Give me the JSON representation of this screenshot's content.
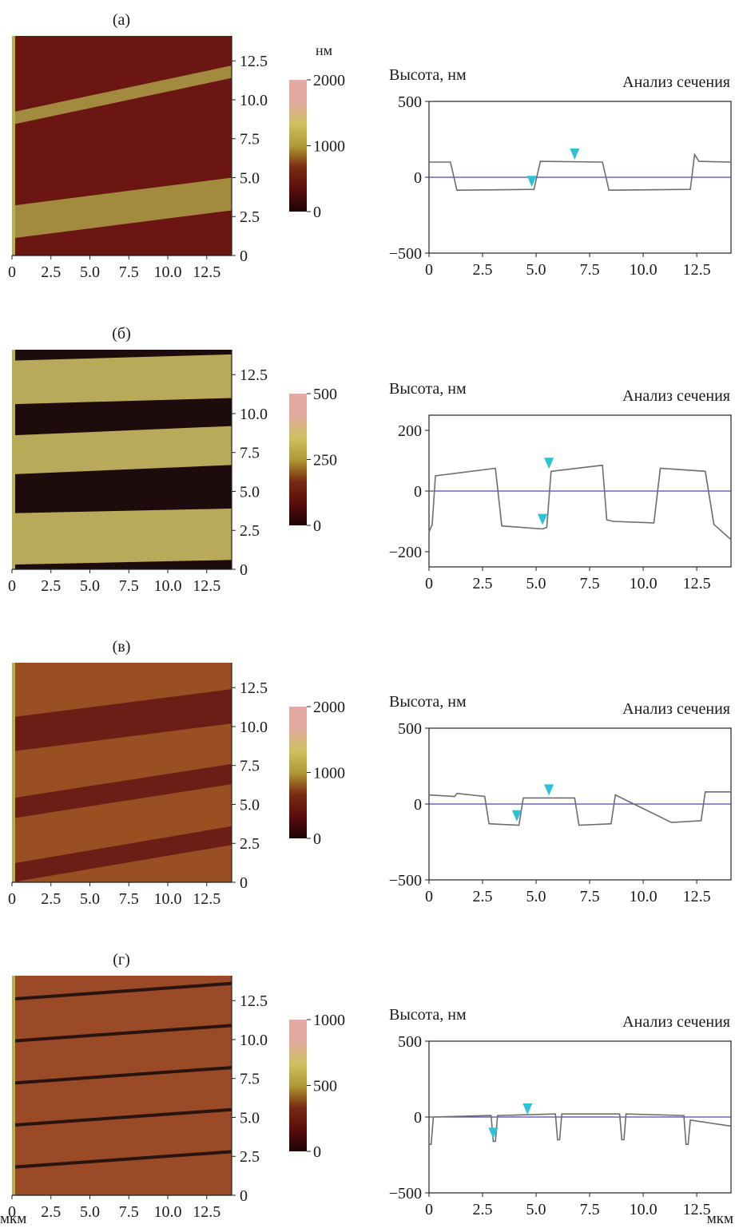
{
  "chart_data": [
    {
      "label": "(а)",
      "type": "heatmap",
      "map": {
        "xticks": [
          "0",
          "2.5",
          "5.0",
          "7.5",
          "10.0",
          "12.5"
        ],
        "yticks": [
          "0",
          "2.5",
          "5.0",
          "7.5",
          "10.0",
          "12.5"
        ],
        "colorbar_unit": "нм",
        "colorbar_ticks": [
          "0",
          "1000",
          "2000"
        ],
        "colorbar_max": 2000,
        "background_color": "#6b1612",
        "stripe_color": "#a28a3e",
        "stripes": [
          [
            1.1,
            3.2,
            5.0
          ],
          [
            8.4,
            9.2,
            12.2
          ]
        ]
      },
      "profile": {
        "type": "line",
        "ylabel": "Высота, нм",
        "title": "Анализ сечения",
        "yticks": [
          "500",
          "0",
          "−500"
        ],
        "xticks": [
          "0",
          "2.5",
          "5.0",
          "7.5",
          "10.0",
          "12.5"
        ],
        "xlim": [
          0,
          14.1
        ],
        "ylim": [
          -500,
          500
        ],
        "x": [
          0,
          1.0,
          1.3,
          4.9,
          5.2,
          8.1,
          8.4,
          12.2,
          12.4,
          12.6,
          14.1
        ],
        "y": [
          100,
          100,
          -85,
          -80,
          105,
          100,
          -85,
          -80,
          150,
          105,
          100
        ],
        "markers": [
          [
            4.8,
            -80
          ],
          [
            6.8,
            100
          ]
        ]
      }
    },
    {
      "label": "(б)",
      "type": "heatmap",
      "map": {
        "xticks": [
          "0",
          "2.5",
          "5.0",
          "7.5",
          "10.0",
          "12.5"
        ],
        "yticks": [
          "0",
          "2.5",
          "5.0",
          "7.5",
          "10.0",
          "12.5"
        ],
        "colorbar_unit": "",
        "colorbar_ticks": [
          "0",
          "250",
          "500"
        ],
        "colorbar_max": 500,
        "background_color": "#1e0b0c",
        "stripe_color": "#b9a95a",
        "stripes": [
          [
            0.3,
            3.6,
            3.9
          ],
          [
            6.1,
            8.6,
            9.2
          ],
          [
            10.6,
            13.4,
            13.8
          ]
        ]
      },
      "profile": {
        "type": "line",
        "ylabel": "Высота, нм",
        "title": "Анализ сечения",
        "yticks": [
          "200",
          "0",
          "−200"
        ],
        "xticks": [
          "0",
          "2.5",
          "5.0",
          "7.5",
          "10.0",
          "12.5"
        ],
        "xlim": [
          0,
          14.1
        ],
        "ylim": [
          -250,
          250
        ],
        "x": [
          0,
          0.15,
          0.3,
          3.1,
          3.4,
          5.3,
          5.5,
          5.7,
          8.1,
          8.3,
          8.6,
          10.5,
          10.8,
          12.9,
          13.3,
          14.1
        ],
        "y": [
          -135,
          -110,
          50,
          75,
          -115,
          -125,
          -120,
          65,
          85,
          -95,
          -100,
          -105,
          75,
          65,
          -110,
          -160
        ],
        "markers": [
          [
            5.3,
            -120
          ],
          [
            5.6,
            65
          ]
        ]
      }
    },
    {
      "label": "(в)",
      "type": "heatmap",
      "map": {
        "xticks": [
          "0",
          "2.5",
          "5.0",
          "7.5",
          "10.0",
          "12.5"
        ],
        "yticks": [
          "0",
          "2.5",
          "5.0",
          "7.5",
          "10.0",
          "12.5"
        ],
        "colorbar_unit": "",
        "colorbar_ticks": [
          "0",
          "1000",
          "2000"
        ],
        "colorbar_max": 2000,
        "background_color": "#9a4f22",
        "stripe_color": "#6c1e16",
        "stripes": [
          [
            0.0,
            1.2,
            3.6
          ],
          [
            4.1,
            5.4,
            7.6
          ],
          [
            8.4,
            10.6,
            12.4
          ]
        ]
      },
      "profile": {
        "type": "line",
        "ylabel": "Высота, нм",
        "title": "Анализ сечения",
        "yticks": [
          "500",
          "0",
          "−500"
        ],
        "xticks": [
          "0",
          "2.5",
          "5.0",
          "7.5",
          "10.0",
          "12.5"
        ],
        "xlim": [
          0,
          14.1
        ],
        "ylim": [
          -500,
          500
        ],
        "x": [
          0,
          1.2,
          1.3,
          2.6,
          2.8,
          4.2,
          4.4,
          6.8,
          7.0,
          8.5,
          8.7,
          11.3,
          11.5,
          12.7,
          12.9,
          14.1
        ],
        "y": [
          60,
          50,
          70,
          50,
          -130,
          -140,
          40,
          40,
          -140,
          -130,
          60,
          -120,
          -120,
          -110,
          80,
          80
        ],
        "markers": [
          [
            4.1,
            -130
          ],
          [
            5.6,
            40
          ]
        ]
      }
    },
    {
      "label": "(г)",
      "type": "heatmap",
      "map": {
        "xticks": [
          "0",
          "2.5",
          "5.0",
          "7.5",
          "10.0",
          "12.5"
        ],
        "yticks": [
          "0",
          "2.5",
          "5.0",
          "7.5",
          "10.0",
          "12.5"
        ],
        "colorbar_unit": "",
        "colorbar_ticks": [
          "0",
          "500",
          "1000"
        ],
        "colorbar_max": 1000,
        "background_color": "#9a4a26",
        "stripe_color": "#2a1410",
        "stripe_ys": [
          1.8,
          4.5,
          7.2,
          9.9,
          12.6
        ],
        "stripe_slope": 1.0
      },
      "profile": {
        "type": "line",
        "ylabel": "Высота, нм",
        "title": "Анализ сечения",
        "yticks": [
          "500",
          "0",
          "−500"
        ],
        "xticks": [
          "0",
          "2.5",
          "5.0",
          "7.5",
          "10.0",
          "12.5"
        ],
        "xlim": [
          0,
          14.1
        ],
        "ylim": [
          -500,
          500
        ],
        "x": [
          0,
          0.1,
          0.2,
          2.9,
          3.0,
          3.1,
          3.2,
          5.9,
          6.0,
          6.1,
          6.2,
          8.9,
          9.0,
          9.1,
          9.2,
          11.9,
          12.0,
          12.1,
          12.2,
          14.1
        ],
        "y": [
          -180,
          -180,
          0,
          10,
          -160,
          -160,
          10,
          20,
          -150,
          -150,
          20,
          20,
          -150,
          -150,
          20,
          10,
          -180,
          -180,
          -20,
          -60
        ],
        "markers": [
          [
            3.0,
            -160
          ],
          [
            4.6,
            0
          ]
        ]
      }
    }
  ],
  "units": {
    "left": "мкм",
    "right": "мкм"
  },
  "colors": {
    "axis": "#222222",
    "profile_line": "#6d6d6d",
    "zero_line": "#4a4ab0",
    "marker": "#29c4d6",
    "colorbar_stops": [
      "#1a0506",
      "#5a0d0c",
      "#7a2a12",
      "#b09a35",
      "#cfc060",
      "#e0a8a0",
      "#e6a9a3"
    ]
  }
}
